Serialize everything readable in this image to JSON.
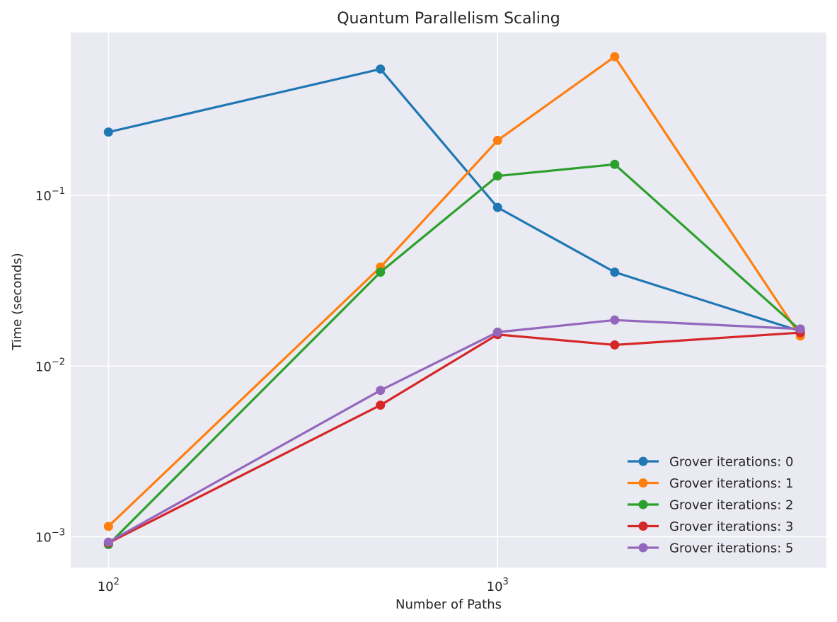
{
  "chart_data": {
    "type": "line",
    "title": "Quantum Parallelism Scaling",
    "xlabel": "Number of Paths",
    "ylabel": "Time (seconds)",
    "x_scale": "log",
    "y_scale": "log",
    "xlim": [
      80,
      7000
    ],
    "ylim": [
      0.00066,
      0.9
    ],
    "x_ticks": [
      {
        "value": 100,
        "base": "10",
        "exp": "2"
      },
      {
        "value": 1000,
        "base": "10",
        "exp": "3"
      }
    ],
    "y_ticks": [
      {
        "value": 0.001,
        "base": "10",
        "exp": "−3"
      },
      {
        "value": 0.01,
        "base": "10",
        "exp": "−2"
      },
      {
        "value": 0.1,
        "base": "10",
        "exp": "−1"
      }
    ],
    "grid": true,
    "background": "#eaeaf2",
    "legend_position": "lower-right",
    "x": [
      100,
      500,
      1000,
      2000,
      6000
    ],
    "series": [
      {
        "name": "Grover iterations: 0",
        "color": "#1f77b4",
        "values": [
          0.235,
          0.55,
          0.085,
          0.0355,
          0.016
        ]
      },
      {
        "name": "Grover iterations: 1",
        "color": "#ff7f0e",
        "values": [
          0.00115,
          0.038,
          0.21,
          0.65,
          0.015
        ]
      },
      {
        "name": "Grover iterations: 2",
        "color": "#2ca02c",
        "values": [
          0.0009,
          0.0355,
          0.13,
          0.152,
          0.0162
        ]
      },
      {
        "name": "Grover iterations: 3",
        "color": "#d62728",
        "values": [
          0.00092,
          0.0059,
          0.0153,
          0.0133,
          0.0157
        ]
      },
      {
        "name": "Grover iterations: 5",
        "color": "#9467bd",
        "values": [
          0.00093,
          0.0072,
          0.0158,
          0.0186,
          0.0165
        ]
      }
    ]
  }
}
